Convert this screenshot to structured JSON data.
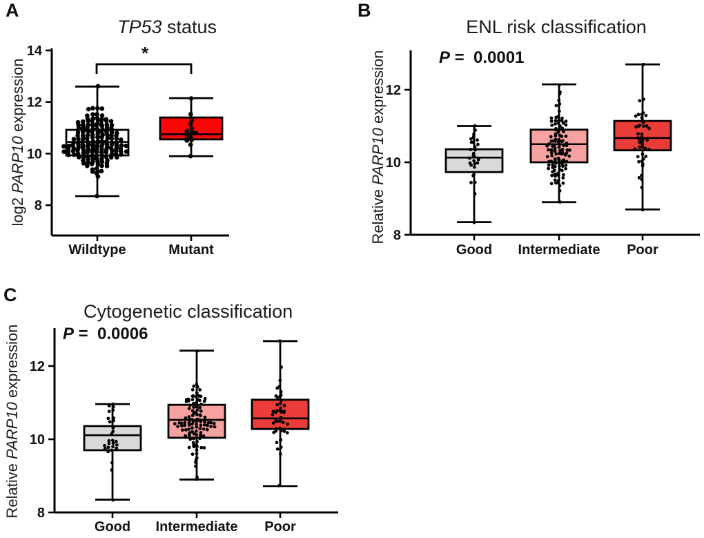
{
  "figure_background": "#ffffff",
  "colors": {
    "axis": "#000000",
    "box_stroke": "#000000",
    "point": "#000000",
    "text": "#1b1b1b",
    "wildtype_fill": "#ffffff",
    "mutant_fill": "#f80606",
    "good_fill": "#d9d9d9",
    "intermediate_fill": "#f6a2a1",
    "poor_fill": "#ea3d3a"
  },
  "panels": {
    "a": {
      "letter": "A",
      "title_italic": "TP53",
      "title_rest": " status",
      "ylabel_prefix": "log2 ",
      "ylabel_italic": "PARP10",
      "ylabel_suffix": " expression"
    },
    "b": {
      "letter": "B",
      "title": "ENL risk classification",
      "p_italic": "P",
      "p_rest": " =  0.0001",
      "ylabel_prefix": "Relative ",
      "ylabel_italic": "PARP10",
      "ylabel_suffix": " expression"
    },
    "c": {
      "letter": "C",
      "title": "Cytogenetic classification",
      "p_italic": "P",
      "p_rest": " =  0.0006",
      "ylabel_prefix": "Relative ",
      "ylabel_italic": "PARP10",
      "ylabel_suffix": " expression"
    }
  },
  "chart_data": [
    {
      "type": "box",
      "panel": "A",
      "title": "TP53 status",
      "ylabel": "log2 PARP10 expression",
      "xlabel": "",
      "categories": [
        "Wildtype",
        "Mutant"
      ],
      "yticks": [
        14,
        12,
        10,
        8
      ],
      "yaxis_range": [
        6.8,
        14
      ],
      "grid": false,
      "series": [
        {
          "category": "Wildtype",
          "whisker_low": 8.35,
          "q1": 9.93,
          "median": 10.45,
          "q3": 10.92,
          "whisker_high": 12.6,
          "n_points": 170,
          "scatter_mean": 10.45,
          "scatter_sd": 0.55,
          "fill": "#ffffff"
        },
        {
          "category": "Mutant",
          "whisker_low": 9.9,
          "q1": 10.55,
          "median": 10.75,
          "q3": 11.4,
          "whisker_high": 12.15,
          "n_points": 17,
          "scatter_mean": 10.85,
          "scatter_sd": 0.5,
          "fill": "#f80606"
        }
      ],
      "significance": {
        "label": "*",
        "between": [
          "Wildtype",
          "Mutant"
        ],
        "bar_y_value": 13.4
      }
    },
    {
      "type": "box",
      "panel": "B",
      "title": "ENL risk classification",
      "p_value": "P = 0.0001",
      "ylabel": "Relative PARP10 expression",
      "xlabel": "",
      "categories": [
        "Good",
        "Intermediate",
        "Poor"
      ],
      "yticks": [
        12,
        10,
        8
      ],
      "yaxis_range": [
        8,
        13.1
      ],
      "grid": false,
      "series": [
        {
          "category": "Good",
          "whisker_low": 8.35,
          "q1": 9.73,
          "median": 10.13,
          "q3": 10.36,
          "whisker_high": 11.0,
          "n_points": 30,
          "scatter_mean": 10.05,
          "scatter_sd": 0.5,
          "fill": "#d9d9d9"
        },
        {
          "category": "Intermediate",
          "whisker_low": 8.9,
          "q1": 10.0,
          "median": 10.5,
          "q3": 10.9,
          "whisker_high": 12.15,
          "n_points": 110,
          "scatter_mean": 10.45,
          "scatter_sd": 0.55,
          "fill": "#f6a2a1"
        },
        {
          "category": "Poor",
          "whisker_low": 8.7,
          "q1": 10.33,
          "median": 10.67,
          "q3": 11.14,
          "whisker_high": 12.7,
          "n_points": 45,
          "scatter_mean": 10.7,
          "scatter_sd": 0.6,
          "fill": "#ea3d3a"
        }
      ]
    },
    {
      "type": "box",
      "panel": "C",
      "title": "Cytogenetic classification",
      "p_value": "P = 0.0006",
      "ylabel": "Relative PARP10 expression",
      "xlabel": "",
      "categories": [
        "Good",
        "Intermediate",
        "Poor"
      ],
      "yticks": [
        12,
        10,
        8
      ],
      "yaxis_range": [
        8,
        13.0
      ],
      "grid": false,
      "series": [
        {
          "category": "Good",
          "whisker_low": 8.35,
          "q1": 9.7,
          "median": 10.11,
          "q3": 10.36,
          "whisker_high": 10.96,
          "n_points": 30,
          "scatter_mean": 10.05,
          "scatter_sd": 0.5,
          "fill": "#d9d9d9"
        },
        {
          "category": "Intermediate",
          "whisker_low": 8.9,
          "q1": 10.04,
          "median": 10.53,
          "q3": 10.94,
          "whisker_high": 12.42,
          "n_points": 110,
          "scatter_mean": 10.45,
          "scatter_sd": 0.55,
          "fill": "#f6a2a1"
        },
        {
          "category": "Poor",
          "whisker_low": 8.72,
          "q1": 10.28,
          "median": 10.57,
          "q3": 11.08,
          "whisker_high": 12.68,
          "n_points": 45,
          "scatter_mean": 10.65,
          "scatter_sd": 0.6,
          "fill": "#ea3d3a"
        }
      ]
    }
  ]
}
